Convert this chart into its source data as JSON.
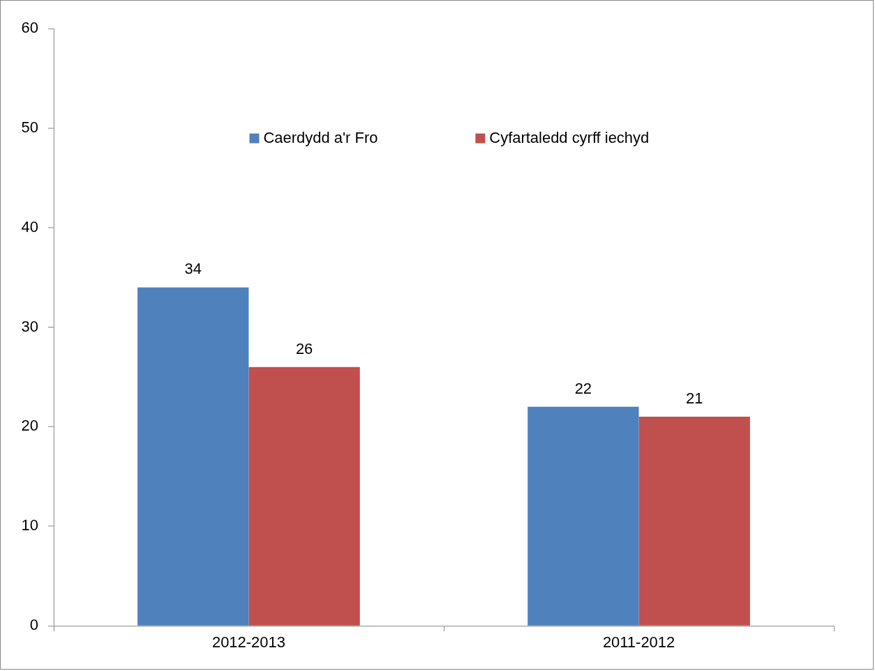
{
  "chart_data": {
    "type": "bar",
    "categories": [
      "2012-2013",
      "2011-2012"
    ],
    "series": [
      {
        "name": "Caerdydd a'r Fro",
        "color": "#4f81bd",
        "values": [
          34,
          22
        ]
      },
      {
        "name": "Cyfartaledd cyrff iechyd",
        "color": "#c0504d",
        "values": [
          26,
          21
        ]
      }
    ],
    "ylim": [
      0,
      60
    ],
    "yticks": [
      0,
      10,
      20,
      30,
      40,
      50,
      60
    ],
    "grid": false,
    "legend": "top",
    "data_labels": true
  }
}
